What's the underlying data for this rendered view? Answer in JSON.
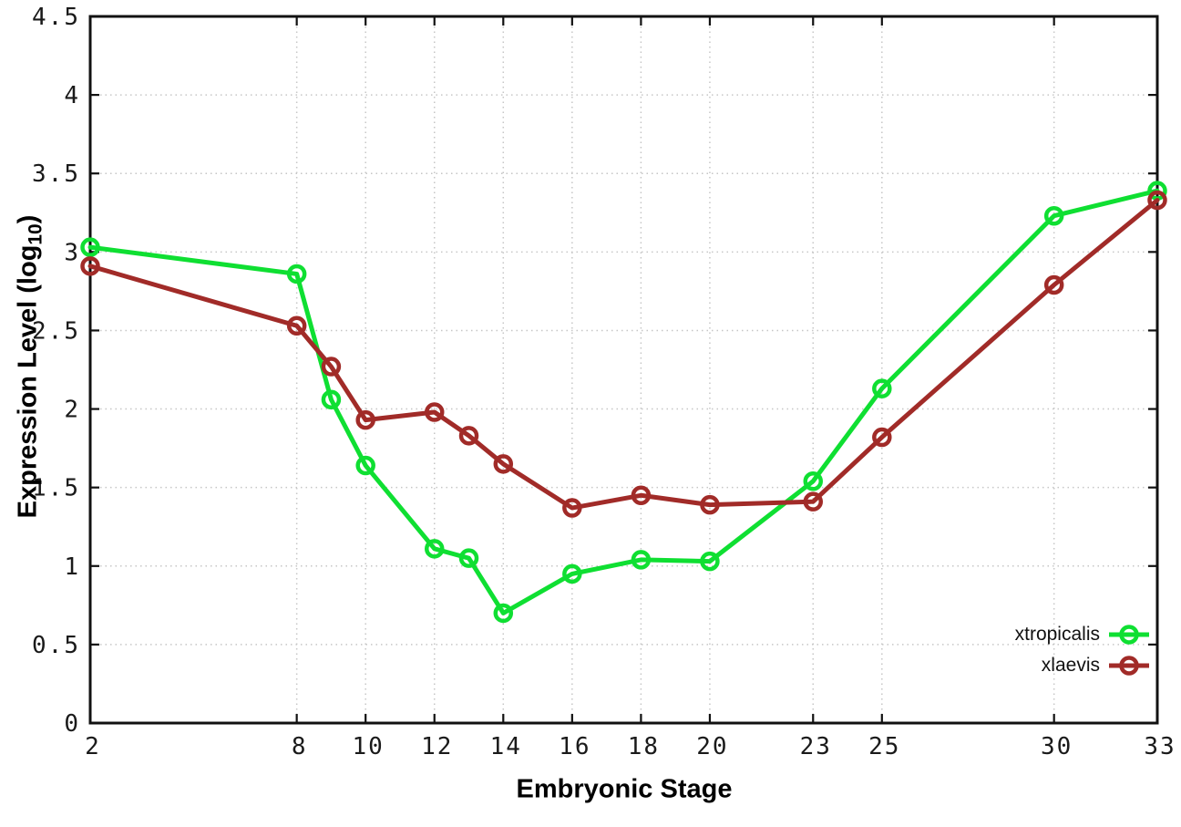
{
  "figure": {
    "background": "#ffffff"
  },
  "colors": {
    "grid": "#c6c6c6",
    "axis": "#111111",
    "tick_label": "#1a1a1a"
  },
  "chart_data": {
    "type": "line",
    "title": "",
    "xlabel": "Embryonic Stage",
    "ylabel": {
      "prefix": "Expression Level (log",
      "subscript": "10",
      "suffix": ")"
    },
    "x": [
      2,
      8,
      9,
      10,
      12,
      13,
      14,
      16,
      18,
      20,
      23,
      25,
      30,
      33
    ],
    "xlim": [
      2,
      33
    ],
    "ylim": [
      0,
      4.5
    ],
    "xtick_values": [
      2,
      8,
      10,
      12,
      14,
      16,
      18,
      20,
      23,
      25,
      30,
      33
    ],
    "xticks": [
      "2",
      "8",
      "10",
      "12",
      "14",
      "16",
      "18",
      "20",
      "23",
      "25",
      "30",
      "33"
    ],
    "ytick_values": [
      0,
      0.5,
      1,
      1.5,
      2,
      2.5,
      3,
      3.5,
      4,
      4.5
    ],
    "yticks": [
      "0",
      "0.5",
      "1",
      "1.5",
      "2",
      "2.5",
      "3",
      "3.5",
      "4",
      "4.5"
    ],
    "grid": true,
    "legend_position": "bottom-right",
    "marker": "open-circle",
    "series": [
      {
        "name": "xtropicalis",
        "color": "#0fdf32",
        "values": [
          3.03,
          2.86,
          2.06,
          1.64,
          1.11,
          1.05,
          0.7,
          0.95,
          1.04,
          1.03,
          1.54,
          2.13,
          3.23,
          3.39
        ]
      },
      {
        "name": "xlaevis",
        "color": "#a12b28",
        "values": [
          2.91,
          2.53,
          2.27,
          1.93,
          1.98,
          1.83,
          1.65,
          1.37,
          1.45,
          1.39,
          1.41,
          1.82,
          2.79,
          3.33
        ]
      }
    ]
  }
}
